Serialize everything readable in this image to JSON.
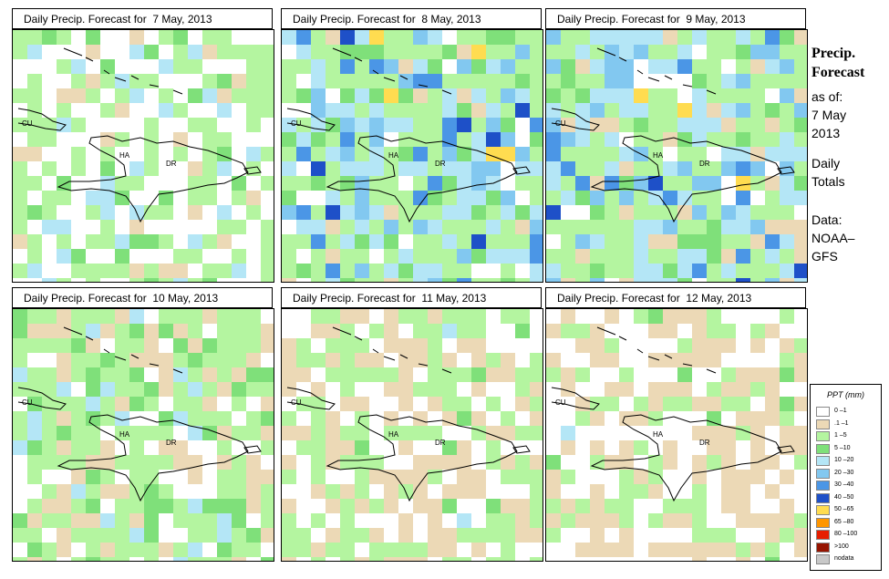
{
  "header": {
    "title": "Precip. Forecast",
    "as_of_label": "as of:",
    "date_day": "7 May",
    "date_year": "2013",
    "totals_line1": "Daily",
    "totals_line2": "Totals",
    "data_line1": "Data:",
    "data_line2": "NOAA–",
    "data_line3": "GFS"
  },
  "map_labels": {
    "cuba": "CU",
    "haiti": "HA",
    "dominican_republic": "DR"
  },
  "panels": [
    {
      "title": "Daily Precip. Forecast for  7 May, 2013"
    },
    {
      "title": "Daily Precip. Forecast for  8 May, 2013"
    },
    {
      "title": "Daily Precip. Forecast for  9 May, 2013"
    },
    {
      "title": "Daily Precip. Forecast for  10 May, 2013"
    },
    {
      "title": "Daily Precip. Forecast for  11 May, 2013"
    },
    {
      "title": "Daily Precip. Forecast for  12 May, 2013"
    }
  ],
  "legend": {
    "title": "PPT (mm)",
    "items": [
      {
        "label": "0 –1",
        "color": "#ffffff"
      },
      {
        "label": ".1 –1",
        "color": "#ecd9b6"
      },
      {
        "label": "1 –5",
        "color": "#b4f5a0"
      },
      {
        "label": "5 –10",
        "color": "#7fe07a"
      },
      {
        "label": "10 –20",
        "color": "#b4e6f6"
      },
      {
        "label": "20 –30",
        "color": "#82c8f0"
      },
      {
        "label": "30 –40",
        "color": "#4b96e6"
      },
      {
        "label": "40 –50",
        "color": "#1e50c8"
      },
      {
        "label": "50 –65",
        "color": "#ffdc50"
      },
      {
        "label": "65 –80",
        "color": "#ff9600"
      },
      {
        "label": "80 –100",
        "color": "#e61e00"
      },
      {
        "label": ">100",
        "color": "#961400"
      },
      {
        "label": "nodata",
        "color": "#c8c8c8"
      }
    ]
  }
}
